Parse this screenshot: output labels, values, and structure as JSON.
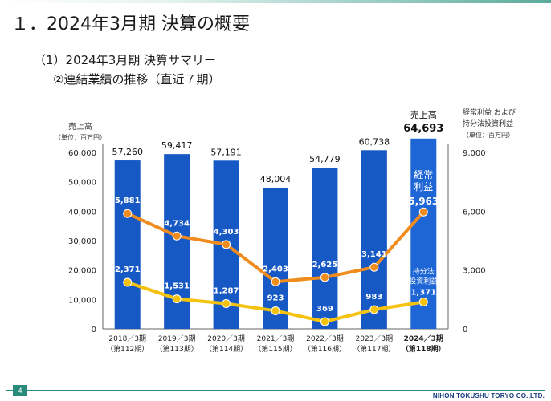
{
  "slide": {
    "title": "１．2024年3月期 決算の概要",
    "subtitle1": "（1）2024年3月期 決算サマリー",
    "subtitle2": "②連結業績の推移（直近７期）",
    "page_number": "4",
    "company": "NIHON TOKUSHU TORYO CO.,LTD."
  },
  "colors": {
    "bar": "#1759c4",
    "bar_highlight": "#1e66d6",
    "ordinary_profit": "#f08c1e",
    "equity_profit": "#f5c20f",
    "accent_footer": "#2a8a7a"
  },
  "chart_data": {
    "type": "bar+line",
    "left_axis": {
      "title": "売上高",
      "unit": "（単位：百万円）",
      "ticks": [
        "0",
        "10,000",
        "20,000",
        "30,000",
        "40,000",
        "50,000",
        "60,000"
      ],
      "range": [
        0,
        60000
      ]
    },
    "right_axis": {
      "title1": "経常利益 および",
      "title2": "持分法投資利益",
      "unit": "（単位：百万円）",
      "ticks": [
        "0",
        "3,000",
        "6,000",
        "9,000"
      ],
      "range": [
        0,
        9000
      ]
    },
    "categories": [
      {
        "period": "2018／3期",
        "term": "（第112期）"
      },
      {
        "period": "2019／3期",
        "term": "（第113期）"
      },
      {
        "period": "2020／3期",
        "term": "（第114期）"
      },
      {
        "period": "2021／3期",
        "term": "（第115期）"
      },
      {
        "period": "2022／3期",
        "term": "（第116期）"
      },
      {
        "period": "2023／3期",
        "term": "（第117期）"
      },
      {
        "period": "2024／3期",
        "term": "（第118期）"
      }
    ],
    "sales": {
      "values": [
        57260,
        59417,
        57191,
        48004,
        54779,
        60738,
        64693
      ],
      "labels": [
        "57,260",
        "59,417",
        "57,191",
        "48,004",
        "54,779",
        "60,738",
        "64,693"
      ]
    },
    "ordinary_profit": {
      "values": [
        5881,
        4734,
        4303,
        2403,
        2625,
        3141,
        5963
      ],
      "labels": [
        "5,881",
        "4,734",
        "4,303",
        "2,403",
        "2,625",
        "3,141",
        "5,963"
      ]
    },
    "equity_method_profit": {
      "values": [
        2371,
        1531,
        1287,
        923,
        369,
        983,
        1371
      ],
      "labels": [
        "2,371",
        "1,531",
        "1,287",
        "923",
        "369",
        "983",
        "1,371"
      ]
    },
    "series_labels": {
      "sales": "売上高",
      "ordinary_line1": "経常",
      "ordinary_line2": "利益",
      "equity_line1": "持分法",
      "equity_line2": "投資利益"
    }
  }
}
